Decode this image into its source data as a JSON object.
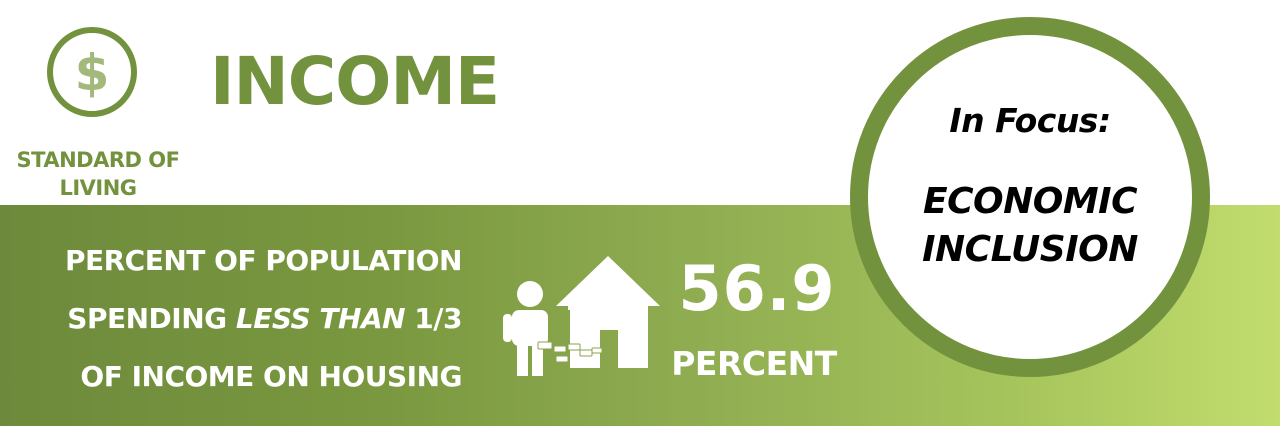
{
  "header": {
    "title": "INCOME",
    "category_icon": "dollar-circle-icon",
    "category_label_lines": [
      "STANDARD OF",
      "LIVING"
    ]
  },
  "indicator": {
    "label_lines": [
      {
        "before": "PERCENT OF POPULATION",
        "emphasis": "",
        "after": ""
      },
      {
        "before": "SPENDING ",
        "emphasis": "LESS THAN",
        "after": " 1/3"
      },
      {
        "before": "OF INCOME ON HOUSING",
        "emphasis": "",
        "after": ""
      }
    ],
    "illustration_icon": "person-house-money-icon",
    "value": "56.9",
    "unit": "PERCENT"
  },
  "focus": {
    "heading": "In Focus:",
    "topic_lines": [
      "ECONOMIC",
      "INCLUSION"
    ]
  },
  "colors": {
    "brand_green": "#73923e",
    "band_gradient_start": "#6d8a3c",
    "band_gradient_end": "#c2dd6e",
    "text_on_band": "#ffffff",
    "focus_text": "#000000"
  }
}
